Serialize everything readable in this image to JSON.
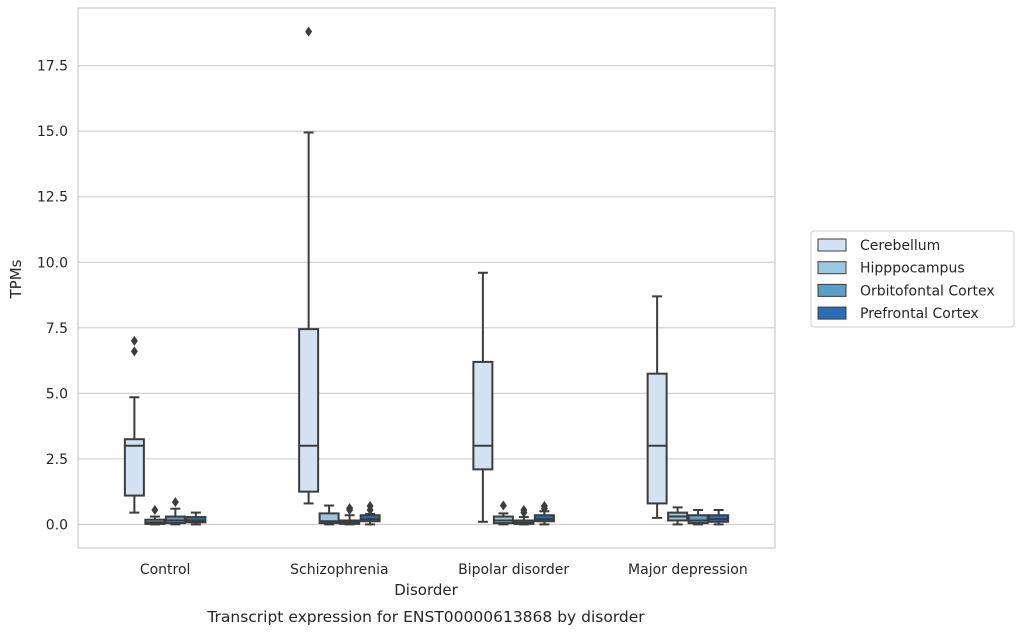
{
  "chart_data": {
    "type": "box",
    "caption": "Transcript expression for ENST00000613868 by disorder",
    "xlabel": "Disorder",
    "ylabel": "TPMs",
    "ylim": [
      -0.9,
      19.7
    ],
    "yticks": [
      0.0,
      2.5,
      5.0,
      7.5,
      10.0,
      12.5,
      15.0,
      17.5
    ],
    "ytick_labels": [
      "0.0",
      "2.5",
      "5.0",
      "7.5",
      "10.0",
      "12.5",
      "15.0",
      "17.5"
    ],
    "grid": "horizontal",
    "legend_position": "right",
    "categories": [
      "Control",
      "Schizophrenia",
      "Bipolar disorder",
      "Major depression"
    ],
    "series": [
      {
        "name": "Cerebellum",
        "color": "#d2e2f2",
        "boxes": [
          {
            "q1": 1.1,
            "median": 3.0,
            "q3": 3.25,
            "whislo": 0.45,
            "whishi": 4.85,
            "fliers": [
              6.6,
              7.0
            ]
          },
          {
            "q1": 1.25,
            "median": 3.0,
            "q3": 7.45,
            "whislo": 0.8,
            "whishi": 14.95,
            "fliers": [
              18.8
            ]
          },
          {
            "q1": 2.1,
            "median": 3.0,
            "q3": 6.2,
            "whislo": 0.1,
            "whishi": 9.6,
            "fliers": []
          },
          {
            "q1": 0.8,
            "median": 3.0,
            "q3": 5.75,
            "whislo": 0.25,
            "whishi": 8.7,
            "fliers": []
          }
        ]
      },
      {
        "name": "Hipppocampus",
        "color": "#9ac8e0",
        "boxes": [
          {
            "q1": 0.02,
            "median": 0.08,
            "q3": 0.18,
            "whislo": 0.0,
            "whishi": 0.3,
            "fliers": [
              0.55
            ]
          },
          {
            "q1": 0.05,
            "median": 0.12,
            "q3": 0.42,
            "whislo": 0.0,
            "whishi": 0.72,
            "fliers": []
          },
          {
            "q1": 0.05,
            "median": 0.15,
            "q3": 0.3,
            "whislo": 0.0,
            "whishi": 0.42,
            "fliers": [
              0.72
            ]
          },
          {
            "q1": 0.15,
            "median": 0.3,
            "q3": 0.45,
            "whislo": 0.0,
            "whishi": 0.65,
            "fliers": []
          }
        ]
      },
      {
        "name": "Orbitofontal Cortex",
        "color": "#5a9ec9",
        "boxes": [
          {
            "q1": 0.05,
            "median": 0.15,
            "q3": 0.3,
            "whislo": 0.0,
            "whishi": 0.6,
            "fliers": [
              0.85
            ]
          },
          {
            "q1": 0.02,
            "median": 0.08,
            "q3": 0.15,
            "whislo": 0.0,
            "whishi": 0.35,
            "fliers": [
              0.55,
              0.62
            ]
          },
          {
            "q1": 0.02,
            "median": 0.07,
            "q3": 0.15,
            "whislo": 0.0,
            "whishi": 0.28,
            "fliers": [
              0.45,
              0.55
            ]
          },
          {
            "q1": 0.05,
            "median": 0.15,
            "q3": 0.35,
            "whislo": 0.0,
            "whishi": 0.55,
            "fliers": []
          }
        ]
      },
      {
        "name": "Prefrontal Cortex",
        "color": "#2a6fb3",
        "boxes": [
          {
            "q1": 0.08,
            "median": 0.15,
            "q3": 0.28,
            "whislo": 0.0,
            "whishi": 0.45,
            "fliers": []
          },
          {
            "q1": 0.12,
            "median": 0.2,
            "q3": 0.35,
            "whislo": 0.0,
            "whishi": 0.4,
            "fliers": [
              0.55,
              0.7
            ]
          },
          {
            "q1": 0.12,
            "median": 0.2,
            "q3": 0.35,
            "whislo": 0.0,
            "whishi": 0.5,
            "fliers": [
              0.6,
              0.7
            ]
          },
          {
            "q1": 0.1,
            "median": 0.2,
            "q3": 0.35,
            "whislo": 0.0,
            "whishi": 0.55,
            "fliers": []
          }
        ]
      }
    ]
  }
}
